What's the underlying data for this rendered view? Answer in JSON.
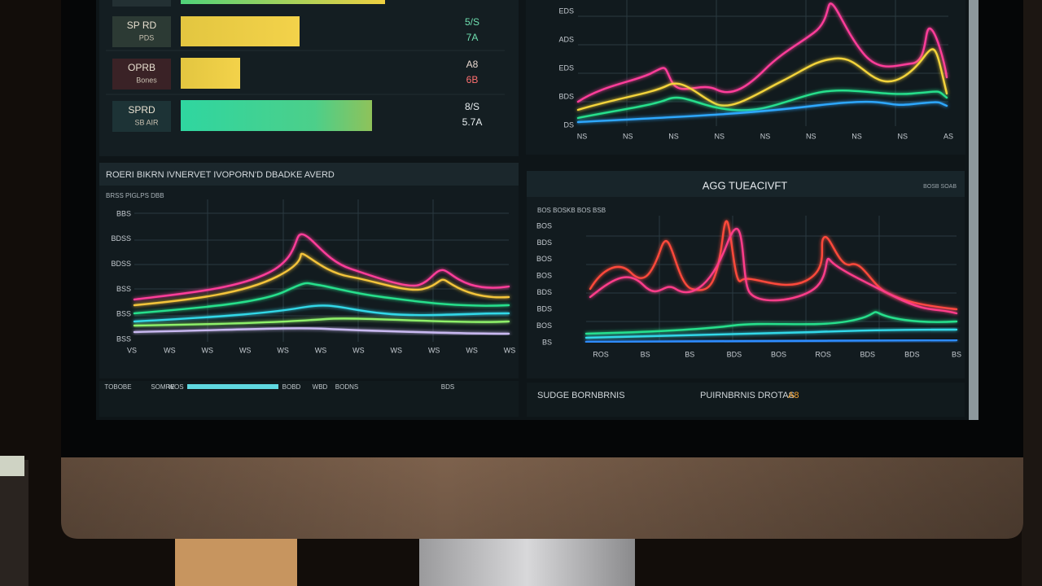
{
  "top_left_panel": {
    "rows": [
      {
        "name": "SP RD",
        "sub": "PDS",
        "value": "5/S",
        "change": "7A"
      },
      {
        "name": "OPRB",
        "sub": "Bones",
        "value": "A8",
        "change": "6B"
      },
      {
        "name": "SPRD",
        "sub": "SB AIR",
        "value": "8/S",
        "change": "5.7A"
      }
    ]
  },
  "top_right_chart": {
    "y_labels": [
      "EDS",
      "ADS",
      "EDS",
      "BDS",
      "DS"
    ],
    "x_labels": [
      "NS",
      "NS",
      "NS",
      "NS",
      "NS",
      "NS",
      "NS",
      "NS",
      "AS"
    ]
  },
  "mid_left_chart": {
    "title": "ROERI BIKRN IVNERVET IVOPORN'D DBADKE AVERD",
    "subtitle": "BRSS PIGLPS DBB",
    "y_labels": [
      "BBS",
      "BDSS",
      "BDSS",
      "BSS",
      "BSS",
      "BSS"
    ],
    "x_labels": [
      "VS",
      "WS",
      "WS",
      "WS",
      "WS",
      "WS",
      "WS",
      "WS",
      "WS",
      "WS",
      "WS"
    ]
  },
  "mid_right_chart": {
    "title": "AGG TUEACIVFT",
    "legend": "BOSB SOAB",
    "header": "BOS BOSKB BOS BSB",
    "y_labels": [
      "BOS",
      "BDS",
      "BOS",
      "BOS",
      "BDS",
      "BDS",
      "BOS",
      "BS"
    ],
    "x_labels": [
      "ROS",
      "BS",
      "BS",
      "BDS",
      "BOS",
      "ROS",
      "BDS",
      "BDS",
      "BS"
    ]
  },
  "bottom_left": {
    "labels": [
      "TOBOBE",
      "SOMRE",
      "WOS",
      "BOBD",
      "WBD",
      "BODNS",
      "BDS"
    ]
  },
  "bottom_right": {
    "label": "SUDGE BORNBRNIS",
    "caption": "PUIRNBRNIS DROTAS",
    "highlight": "A8"
  }
}
